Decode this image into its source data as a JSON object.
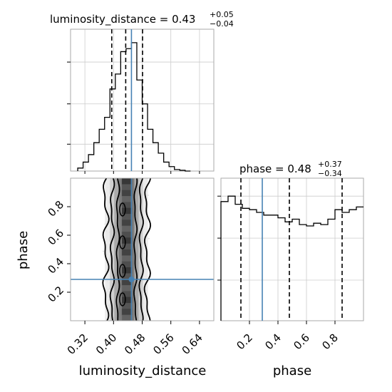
{
  "chart_data": {
    "type": "corner",
    "parameters": [
      "luminosity_distance",
      "phase"
    ],
    "truth": {
      "luminosity_distance": 0.45,
      "phase": 0.29
    },
    "titles": {
      "luminosity_distance": {
        "name": "luminosity_distance",
        "median": "0.43",
        "plus": "+0.05",
        "minus": "−0.04"
      },
      "phase": {
        "name": "phase",
        "median": "0.48",
        "plus": "+0.37",
        "minus": "−0.34"
      }
    },
    "quantiles": {
      "luminosity_distance": [
        0.395,
        0.434,
        0.481
      ],
      "phase": [
        0.14,
        0.48,
        0.85
      ]
    },
    "axes": {
      "luminosity_distance": {
        "label": "luminosity_distance",
        "range": [
          0.28,
          0.68
        ],
        "ticks": [
          0.32,
          0.4,
          0.48,
          0.56,
          0.64
        ],
        "tick_labels": [
          "0.32",
          "0.40",
          "0.48",
          "0.56",
          "0.64"
        ]
      },
      "phase": {
        "label": "phase",
        "range": [
          0.0,
          1.0
        ],
        "ticks": [
          0.2,
          0.4,
          0.6,
          0.8
        ],
        "tick_labels": [
          "0.2",
          "0.4",
          "0.6",
          "0.8"
        ]
      }
    },
    "histogram_luminosity_distance": {
      "bin_edges": [
        0.3,
        0.315,
        0.33,
        0.345,
        0.36,
        0.375,
        0.39,
        0.405,
        0.42,
        0.435,
        0.45,
        0.465,
        0.48,
        0.495,
        0.51,
        0.525,
        0.54,
        0.555,
        0.57,
        0.585,
        0.6,
        0.615
      ],
      "counts": [
        0.02,
        0.06,
        0.11,
        0.19,
        0.28,
        0.36,
        0.55,
        0.65,
        0.8,
        0.82,
        0.86,
        0.61,
        0.45,
        0.28,
        0.19,
        0.12,
        0.06,
        0.03,
        0.01,
        0.005,
        0.0
      ]
    },
    "histogram_phase": {
      "bin_edges": [
        0.0,
        0.05,
        0.1,
        0.15,
        0.2,
        0.25,
        0.3,
        0.35,
        0.4,
        0.45,
        0.5,
        0.55,
        0.6,
        0.65,
        0.7,
        0.75,
        0.8,
        0.85,
        0.9,
        0.95,
        1.0
      ],
      "counts": [
        0.88,
        0.92,
        0.86,
        0.83,
        0.82,
        0.8,
        0.78,
        0.78,
        0.76,
        0.73,
        0.75,
        0.71,
        0.7,
        0.72,
        0.71,
        0.75,
        0.82,
        0.8,
        0.82,
        0.84
      ]
    },
    "grid": true
  }
}
